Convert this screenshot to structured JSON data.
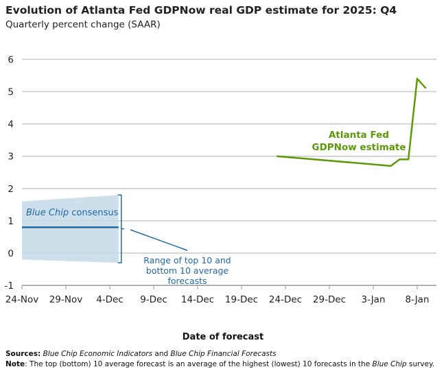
{
  "title": "Evolution of Atlanta Fed GDPNow real GDP estimate for 2025: Q4",
  "subtitle": "Quarterly percent change (SAAR)",
  "notes": {
    "sources_label": "Sources:",
    "sources_1": "Blue Chip Economic Indicators",
    "sources_and": " and ",
    "sources_2": "Blue Chip Financial Forecasts",
    "note_label": "Note",
    "note_text": ": The top (bottom) 10 average forecast is an average of the highest (lowest) 10 forecasts in the ",
    "note_italic": "Blue Chip",
    "note_end": " survey."
  },
  "chart_data": {
    "type": "line",
    "xlabel": "Date of forecast",
    "ylabel": "",
    "ylim": [
      -1,
      6
    ],
    "yticks": [
      -1,
      0,
      1,
      2,
      3,
      4,
      5,
      6
    ],
    "xticks": [
      "24-Nov",
      "29-Nov",
      "4-Dec",
      "9-Dec",
      "14-Dec",
      "19-Dec",
      "24-Dec",
      "29-Dec",
      "3-Jan",
      "8-Jan"
    ],
    "grid": true,
    "colors": {
      "gdpnow": "#5a9a08",
      "bluechip": "#1f6aa5",
      "band": "#c3d9e8"
    },
    "series": [
      {
        "name": "Atlanta Fed GDPNow estimate",
        "label_1": "Atlanta Fed",
        "label_2": "GDPNow estimate",
        "x": [
          "23-Dec",
          "5-Jan",
          "6-Jan",
          "7-Jan",
          "8-Jan",
          "9-Jan"
        ],
        "y": [
          3.0,
          2.7,
          2.9,
          2.9,
          5.4,
          5.1
        ]
      },
      {
        "name": "Blue Chip consensus",
        "label_italic": "Blue Chip",
        "label_rest": " consensus",
        "x": [
          "24-Nov",
          "5-Dec"
        ],
        "y": [
          0.8,
          0.8
        ]
      }
    ],
    "band": {
      "label_1": "Range of top 10 and",
      "label_2": "bottom 10 average",
      "label_3": "forecasts",
      "x": [
        "24-Nov",
        "5-Dec"
      ],
      "top": [
        1.6,
        1.8
      ],
      "bottom": [
        -0.2,
        -0.3
      ]
    }
  }
}
